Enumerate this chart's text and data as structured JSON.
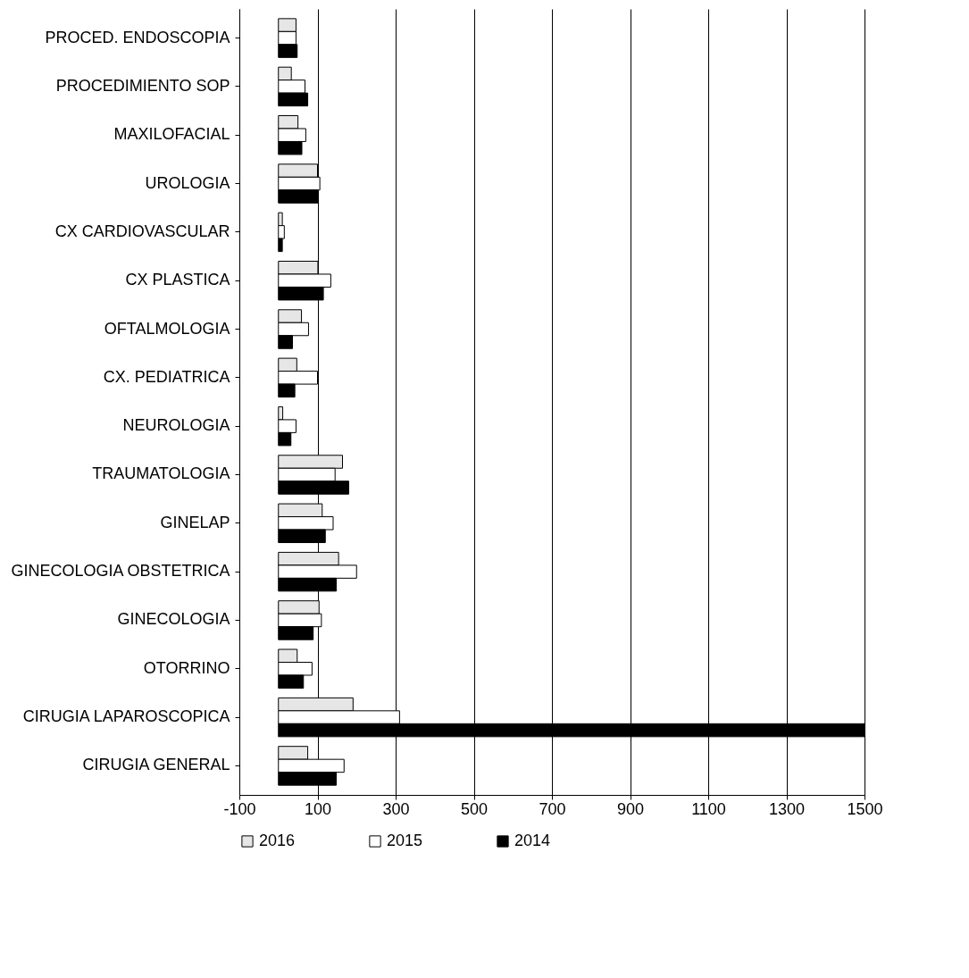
{
  "chart_data": {
    "type": "bar",
    "orientation": "horizontal",
    "categories": [
      "PROCED. ENDOSCOPIA",
      "PROCEDIMIENTO SOP",
      "MAXILOFACIAL",
      "UROLOGIA",
      "CX CARDIOVASCULAR",
      "CX PLASTICA",
      "OFTALMOLOGIA",
      "CX. PEDIATRICA",
      "NEUROLOGIA",
      "TRAUMATOLOGIA",
      "GINELAP",
      "GINECOLOGIA OBSTETRICA",
      "GINECOLOGIA",
      "OTORRINO",
      "CIRUGIA LAPAROSCOPICA",
      "CIRUGIA GENERAL"
    ],
    "series": [
      {
        "name": "2016",
        "color": "#e6e6e6",
        "values": [
          45,
          33,
          50,
          100,
          10,
          101,
          59,
          47,
          11,
          164,
          112,
          154,
          104,
          48,
          191,
          75
        ]
      },
      {
        "name": "2015",
        "color": "#ffffff",
        "values": [
          45,
          68,
          70,
          106,
          15,
          134,
          77,
          100,
          45,
          145,
          140,
          200,
          110,
          86,
          310,
          168
        ]
      },
      {
        "name": "2014",
        "color": "#000000",
        "values": [
          48,
          75,
          60,
          101,
          10,
          115,
          36,
          42,
          32,
          180,
          120,
          148,
          89,
          64,
          1500,
          148
        ]
      }
    ],
    "xlim": [
      -100,
      1500
    ],
    "xticks": [
      -100,
      100,
      300,
      500,
      700,
      900,
      1100,
      1300,
      1500
    ],
    "grid": "x",
    "legend": "bottom"
  }
}
